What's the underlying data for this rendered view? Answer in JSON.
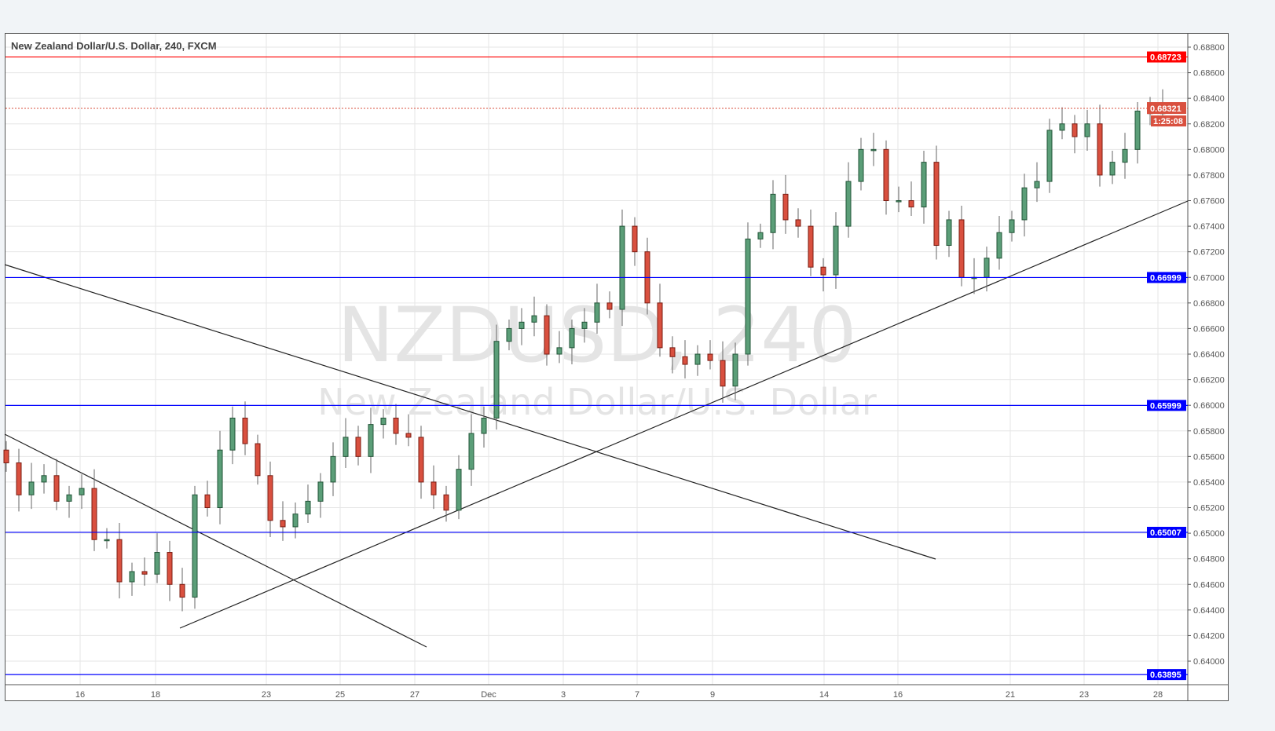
{
  "chart_data": {
    "type": "candlestick",
    "title": "New Zealand Dollar/U.S. Dollar, 240, FXCM",
    "watermark": {
      "symbol": "NZDUSD, 240",
      "description": "New Zealand Dollar/U.S. Dollar"
    },
    "ylim": [
      0.638,
      0.689
    ],
    "y_ticks": [
      "0.68800",
      "0.68600",
      "0.68400",
      "0.68200",
      "0.68000",
      "0.67800",
      "0.67600",
      "0.67400",
      "0.67200",
      "0.67000",
      "0.66800",
      "0.66600",
      "0.66400",
      "0.66200",
      "0.66000",
      "0.65800",
      "0.65600",
      "0.65400",
      "0.65200",
      "0.65000",
      "0.64800",
      "0.64600",
      "0.64400",
      "0.64200",
      "0.64000"
    ],
    "x_ticks": [
      "16",
      "18",
      "23",
      "25",
      "27",
      "Dec",
      "3",
      "7",
      "9",
      "14",
      "16",
      "21",
      "23",
      "28"
    ],
    "grid": true,
    "colors": {
      "up": "#5b9e78",
      "down": "#d9503f",
      "up_border": "#225437",
      "down_border": "#7a1c12",
      "support": "#0000ff",
      "resistance": "#ff0000"
    },
    "closes": [
      0.6555,
      0.653,
      0.654,
      0.6545,
      0.6525,
      0.653,
      0.6535,
      0.6495,
      0.6495,
      0.6462,
      0.647,
      0.6468,
      0.6485,
      0.646,
      0.645,
      0.653,
      0.652,
      0.6565,
      0.659,
      0.657,
      0.6545,
      0.651,
      0.6505,
      0.6515,
      0.6525,
      0.654,
      0.656,
      0.6575,
      0.656,
      0.6585,
      0.659,
      0.6578,
      0.6575,
      0.654,
      0.653,
      0.6518,
      0.655,
      0.6578,
      0.659,
      0.665,
      0.666,
      0.6665,
      0.667,
      0.664,
      0.6645,
      0.666,
      0.6665,
      0.668,
      0.6675,
      0.674,
      0.672,
      0.668,
      0.6645,
      0.6638,
      0.6632,
      0.664,
      0.6635,
      0.6615,
      0.664,
      0.673,
      0.6735,
      0.6765,
      0.6745,
      0.674,
      0.6708,
      0.6702,
      0.674,
      0.6775,
      0.68,
      0.68,
      0.676,
      0.676,
      0.6755,
      0.679,
      0.6725,
      0.6745,
      0.67,
      0.67,
      0.6715,
      0.6735,
      0.6745,
      0.677,
      0.6775,
      0.6815,
      0.682,
      0.681,
      0.682,
      0.678,
      0.679,
      0.68,
      0.683,
      0.6828,
      0.6832
    ],
    "horizontal_levels": [
      {
        "price": 0.68723,
        "label": "0.68723",
        "color": "#ff0000"
      },
      {
        "price": 0.66999,
        "label": "0.66999",
        "color": "#0000ff"
      },
      {
        "price": 0.65999,
        "label": "0.65999",
        "color": "#0000ff"
      },
      {
        "price": 0.65007,
        "label": "0.65007",
        "color": "#0000ff"
      },
      {
        "price": 0.63895,
        "label": "0.63895",
        "color": "#0000ff"
      }
    ],
    "last_price": {
      "price": 0.68321,
      "label": "0.68321",
      "countdown": "1:25:08",
      "color": "#d9503f"
    }
  }
}
